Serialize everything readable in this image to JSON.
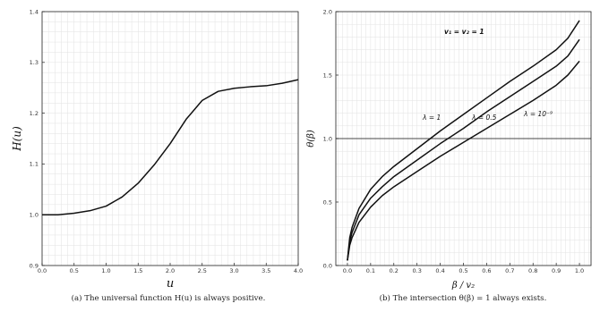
{
  "chart_data": [
    {
      "type": "line",
      "xlabel": "u",
      "ylabel": "H(u)",
      "xlim": [
        0.0,
        4.0
      ],
      "ylim": [
        0.9,
        1.4
      ],
      "xticks": [
        "0.0",
        "0.5",
        "1.0",
        "1.5",
        "2.0",
        "2.5",
        "3.0",
        "3.5",
        "4.0"
      ],
      "yticks": [
        "0.9",
        "1.0",
        "1.1",
        "1.2",
        "1.3",
        "1.4"
      ],
      "grid": true,
      "caption": "(a) The universal function H(u) is always positive.",
      "series": [
        {
          "x": [
            0.0,
            0.25,
            0.5,
            0.75,
            1.0,
            1.25,
            1.5,
            1.75,
            2.0,
            2.25,
            2.5,
            2.75,
            3.0,
            3.25,
            3.5,
            3.75,
            4.0
          ],
          "y": [
            1.0,
            1.0,
            1.003,
            1.008,
            1.017,
            1.035,
            1.062,
            1.098,
            1.14,
            1.188,
            1.225,
            1.243,
            1.249,
            1.252,
            1.254,
            1.259,
            1.266
          ]
        }
      ]
    },
    {
      "type": "line",
      "xlabel": "β / v₂",
      "ylabel": "θ(β)",
      "xlim": [
        -0.05,
        1.05
      ],
      "ylim": [
        0.0,
        2.0
      ],
      "xticks": [
        "0.0",
        "0.1",
        "0.2",
        "0.3",
        "0.4",
        "0.5",
        "0.6",
        "0.7",
        "0.8",
        "0.9",
        "1.0"
      ],
      "yticks": [
        "0.0",
        "0.5",
        "1.0",
        "1.5",
        "2.0"
      ],
      "grid": true,
      "caption": "(b) The intersection θ(β) = 1 always exists.",
      "annotation": "v₁ = v₂ = 1",
      "hline": 1.0,
      "series": [
        {
          "name": "λ = 1",
          "x": [
            0.0,
            0.01,
            0.02,
            0.05,
            0.1,
            0.15,
            0.2,
            0.3,
            0.4,
            0.5,
            0.6,
            0.7,
            0.8,
            0.9,
            0.95,
            1.0
          ],
          "y": [
            0.04,
            0.22,
            0.3,
            0.45,
            0.6,
            0.7,
            0.78,
            0.92,
            1.06,
            1.19,
            1.32,
            1.45,
            1.57,
            1.7,
            1.79,
            1.93
          ]
        },
        {
          "name": "λ = 0.5",
          "x": [
            0.0,
            0.01,
            0.02,
            0.05,
            0.1,
            0.15,
            0.2,
            0.3,
            0.4,
            0.5,
            0.6,
            0.7,
            0.8,
            0.9,
            0.95,
            1.0
          ],
          "y": [
            0.04,
            0.19,
            0.26,
            0.4,
            0.53,
            0.62,
            0.7,
            0.83,
            0.96,
            1.08,
            1.21,
            1.33,
            1.45,
            1.57,
            1.65,
            1.78
          ]
        },
        {
          "name": "λ = 10⁻⁹",
          "x": [
            0.0,
            0.01,
            0.02,
            0.05,
            0.1,
            0.15,
            0.2,
            0.3,
            0.4,
            0.5,
            0.6,
            0.7,
            0.8,
            0.9,
            0.95,
            1.0
          ],
          "y": [
            0.04,
            0.16,
            0.22,
            0.34,
            0.46,
            0.55,
            0.62,
            0.74,
            0.86,
            0.97,
            1.08,
            1.19,
            1.3,
            1.42,
            1.5,
            1.61
          ]
        }
      ]
    }
  ]
}
